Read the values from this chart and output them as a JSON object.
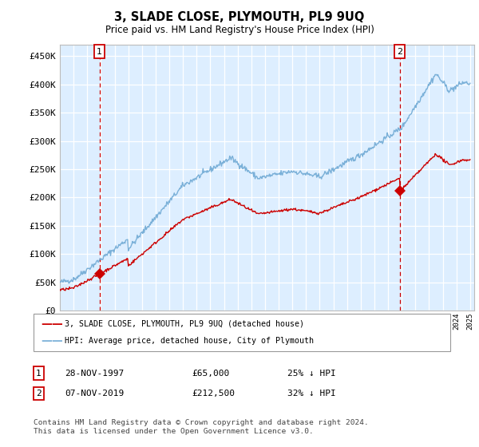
{
  "title": "3, SLADE CLOSE, PLYMOUTH, PL9 9UQ",
  "subtitle": "Price paid vs. HM Land Registry's House Price Index (HPI)",
  "yticks": [
    0,
    50000,
    100000,
    150000,
    200000,
    250000,
    300000,
    350000,
    400000,
    450000
  ],
  "ytick_labels": [
    "£0",
    "£50K",
    "£100K",
    "£150K",
    "£200K",
    "£250K",
    "£300K",
    "£350K",
    "£400K",
    "£450K"
  ],
  "ylim": [
    0,
    470000
  ],
  "bg_color": "#ddeeff",
  "grid_color": "#ffffff",
  "hpi_line_color": "#7ab0d8",
  "price_line_color": "#cc0000",
  "sale1_t": 1997.9,
  "sale1_p": 65000,
  "sale2_t": 2019.85,
  "sale2_p": 212500,
  "legend_line1": "3, SLADE CLOSE, PLYMOUTH, PL9 9UQ (detached house)",
  "legend_line2": "HPI: Average price, detached house, City of Plymouth",
  "table_row1": [
    "1",
    "28-NOV-1997",
    "£65,000",
    "25% ↓ HPI"
  ],
  "table_row2": [
    "2",
    "07-NOV-2019",
    "£212,500",
    "32% ↓ HPI"
  ],
  "footnote": "Contains HM Land Registry data © Crown copyright and database right 2024.\nThis data is licensed under the Open Government Licence v3.0."
}
